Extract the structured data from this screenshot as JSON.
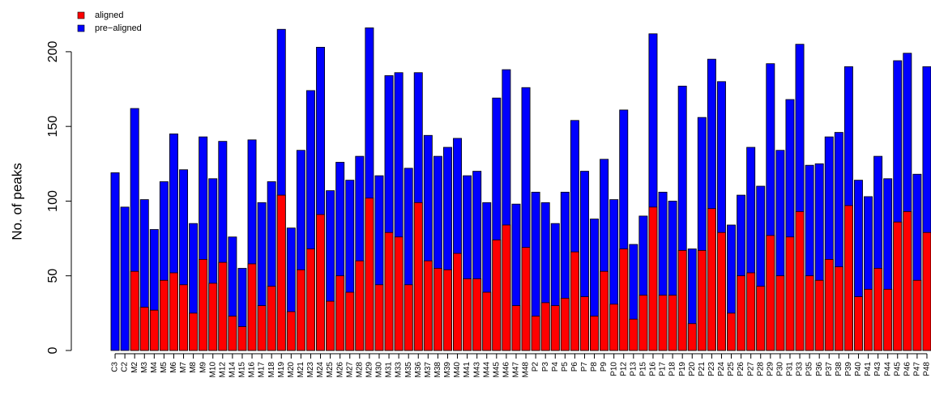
{
  "chart_data": {
    "type": "bar",
    "overlay": true,
    "y_label": "No. of peaks",
    "categories": [
      "C3",
      "C2",
      "M2",
      "M3",
      "M4",
      "M5",
      "M6",
      "M7",
      "M8",
      "M9",
      "M10",
      "M12",
      "M14",
      "M15",
      "M16",
      "M17",
      "M18",
      "M19",
      "M20",
      "M21",
      "M23",
      "M24",
      "M25",
      "M26",
      "M27",
      "M28",
      "M29",
      "M30",
      "M31",
      "M33",
      "M35",
      "M36",
      "M37",
      "M38",
      "M39",
      "M40",
      "M41",
      "M43",
      "M44",
      "M45",
      "M46",
      "M47",
      "M48",
      "P2",
      "P3",
      "P4",
      "P5",
      "P6",
      "P7",
      "P8",
      "P9",
      "P10",
      "P12",
      "P13",
      "P15",
      "P16",
      "P17",
      "P18",
      "P19",
      "P20",
      "P21",
      "P23",
      "P24",
      "P25",
      "P26",
      "P27",
      "P28",
      "P29",
      "P30",
      "P31",
      "P33",
      "P35",
      "P36",
      "P37",
      "P38",
      "P39",
      "P40",
      "P41",
      "P43",
      "P44",
      "P45",
      "P46",
      "P47",
      "P48"
    ],
    "series": [
      {
        "name": "pre−aligned",
        "color": "#0000ff",
        "values": [
          119,
          96,
          162,
          101,
          81,
          113,
          145,
          121,
          85,
          143,
          115,
          140,
          76,
          55,
          141,
          99,
          113,
          215,
          82,
          134,
          174,
          203,
          107,
          126,
          114,
          130,
          216,
          117,
          184,
          186,
          122,
          186,
          144,
          130,
          136,
          142,
          117,
          120,
          99,
          169,
          188,
          98,
          176,
          106,
          99,
          85,
          106,
          154,
          120,
          88,
          128,
          101,
          161,
          71,
          90,
          212,
          106,
          100,
          177,
          68,
          156,
          195,
          180,
          84,
          104,
          136,
          110,
          192,
          134,
          168,
          205,
          124,
          125,
          143,
          146,
          190,
          114,
          103,
          130,
          115,
          194,
          199,
          118,
          190
        ]
      },
      {
        "name": "aligned",
        "color": "#ff0000",
        "values": [
          0,
          0,
          53,
          29,
          27,
          47,
          52,
          44,
          25,
          61,
          45,
          59,
          23,
          16,
          58,
          30,
          43,
          104,
          26,
          54,
          68,
          91,
          33,
          50,
          39,
          60,
          102,
          44,
          79,
          76,
          44,
          99,
          60,
          55,
          54,
          65,
          48,
          48,
          39,
          74,
          84,
          30,
          69,
          23,
          32,
          30,
          35,
          66,
          36,
          23,
          53,
          31,
          68,
          21,
          37,
          96,
          37,
          37,
          67,
          18,
          67,
          95,
          79,
          25,
          50,
          52,
          43,
          77,
          50,
          76,
          93,
          50,
          47,
          61,
          56,
          97,
          36,
          41,
          55,
          41,
          86,
          93,
          47,
          79
        ]
      }
    ],
    "legend_order": [
      1,
      0
    ],
    "ylim": [
      0,
      220
    ],
    "yticks": [
      0,
      50,
      100,
      150,
      200
    ]
  }
}
